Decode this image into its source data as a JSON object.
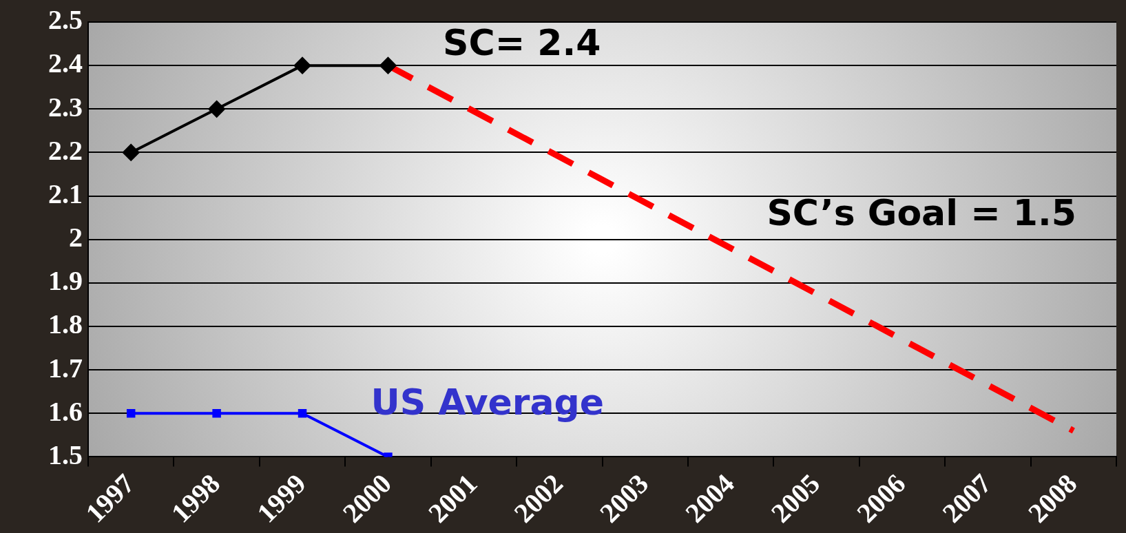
{
  "chart_data": {
    "type": "line",
    "categories": [
      "1997",
      "1998",
      "1999",
      "2000",
      "2001",
      "2002",
      "2003",
      "2004",
      "2005",
      "2006",
      "2007",
      "2008"
    ],
    "series": [
      {
        "color": "#000000",
        "marker": "diamond",
        "line_style": "solid",
        "values": [
          2.2,
          2.3,
          2.4,
          2.4,
          null,
          null,
          null,
          null,
          null,
          null,
          null,
          null
        ]
      },
      {
        "name": "US Average",
        "color": "#0000ff",
        "marker": "square",
        "line_style": "solid",
        "values": [
          1.6,
          1.6,
          1.6,
          1.5,
          null,
          null,
          null,
          null,
          null,
          null,
          null,
          null
        ]
      },
      {
        "color": "#ff0000",
        "marker": "none",
        "line_style": "dashed",
        "values": [
          null,
          null,
          null,
          2.4,
          null,
          null,
          null,
          null,
          null,
          null,
          null,
          1.56
        ]
      }
    ],
    "annotations": [
      "SC= 2.4",
      "SC’s Goal = 1.5"
    ],
    "ylim": [
      1.5,
      2.5
    ],
    "yticks": [
      1.5,
      1.6,
      1.7,
      1.8,
      1.9,
      2,
      2.1,
      2.2,
      2.3,
      2.4,
      2.5
    ],
    "grid": "y",
    "legend": false
  }
}
